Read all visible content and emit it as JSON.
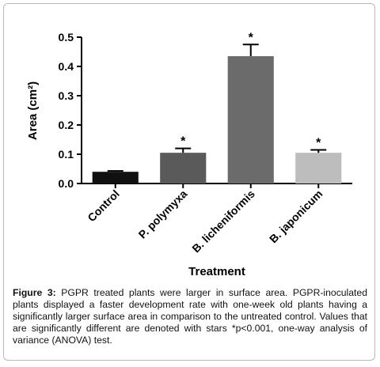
{
  "chart_data": {
    "type": "bar",
    "categories": [
      "Control",
      "P. polymyxa",
      "B. licheniformis",
      "B. japonicum"
    ],
    "values": [
      0.04,
      0.105,
      0.435,
      0.105
    ],
    "errors": [
      0.003,
      0.015,
      0.04,
      0.01
    ],
    "annotations": [
      null,
      "*",
      "*",
      "*"
    ],
    "colors": [
      "#111111",
      "#5a5a5a",
      "#6b6b6b",
      "#bdbdbd"
    ],
    "y_label": "Area (cm²)",
    "x_label": "Treatment",
    "ylim": [
      0,
      0.5
    ],
    "yticks": [
      {
        "value": 0,
        "label": "0.0"
      },
      0.1,
      0.2,
      0.3,
      0.4,
      0.5
    ]
  },
  "caption": {
    "label": "Figure 3:",
    "text": " PGPR treated plants were larger in surface area. PGPR-inoculated plants displayed a faster development rate with one-week old plants having a significantly larger surface area in comparison to the untreated control. Values that are significantly different are denoted with stars *p<0.001, one-way analysis of variance (ANOVA) test."
  }
}
